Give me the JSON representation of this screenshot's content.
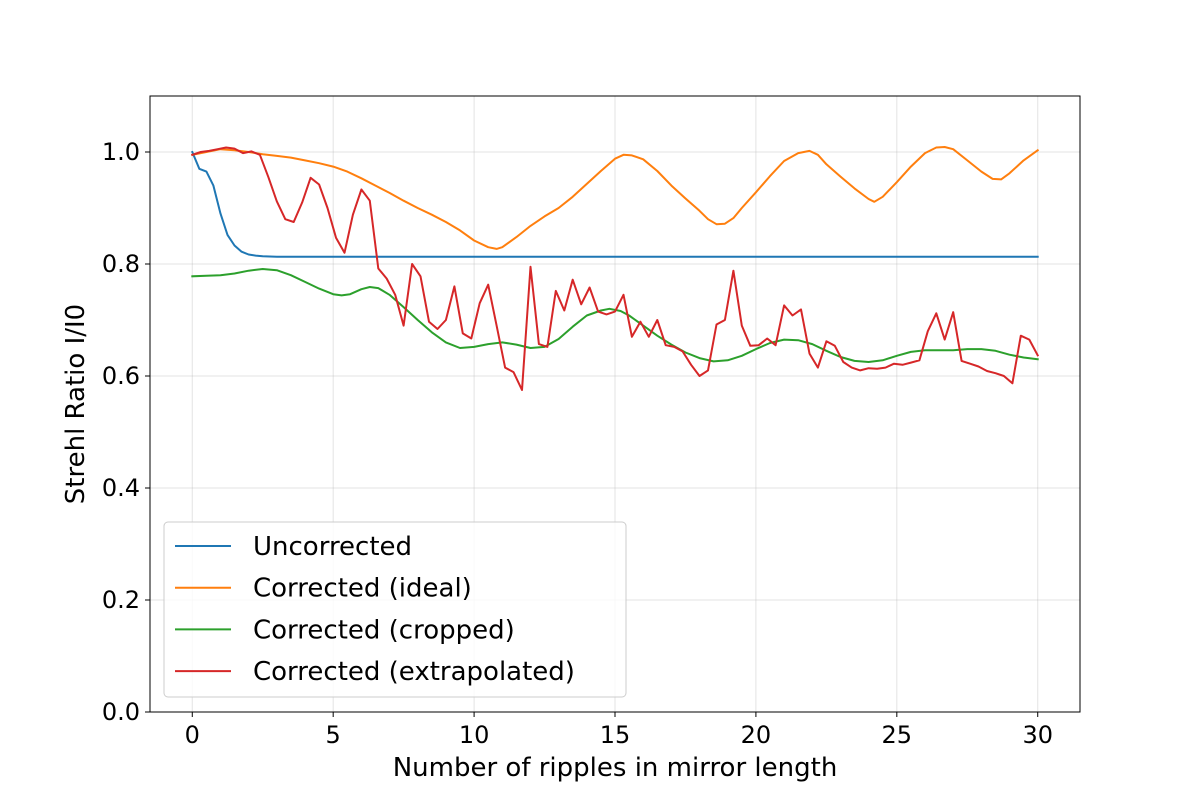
{
  "chart_data": {
    "type": "line",
    "title": "",
    "xlabel": "Number of ripples in mirror length",
    "ylabel": "Strehl Ratio I/I0",
    "xlim": [
      -1.5,
      31.5
    ],
    "ylim": [
      0.0,
      1.1
    ],
    "xticks": [
      0,
      5,
      10,
      15,
      20,
      25,
      30
    ],
    "yticks": [
      0.0,
      0.2,
      0.4,
      0.6,
      0.8,
      1.0
    ],
    "xtick_labels": [
      "0",
      "5",
      "10",
      "15",
      "20",
      "25",
      "30"
    ],
    "ytick_labels": [
      "0.0",
      "0.2",
      "0.4",
      "0.6",
      "0.8",
      "1.0"
    ],
    "grid": true,
    "legend_position": "lower-left",
    "series": [
      {
        "name": "Uncorrected",
        "color": "#1f77b4",
        "x": [
          0,
          0.25,
          0.5,
          0.75,
          1.0,
          1.25,
          1.5,
          1.75,
          2.0,
          2.25,
          2.5,
          3.0,
          3.5,
          4,
          5,
          6,
          8,
          10,
          12,
          14,
          16,
          18,
          20,
          22,
          24,
          26,
          28,
          30
        ],
        "y": [
          1.0,
          0.97,
          0.965,
          0.94,
          0.89,
          0.852,
          0.833,
          0.822,
          0.817,
          0.815,
          0.814,
          0.813,
          0.813,
          0.813,
          0.813,
          0.813,
          0.813,
          0.813,
          0.813,
          0.813,
          0.813,
          0.813,
          0.813,
          0.813,
          0.813,
          0.813,
          0.813,
          0.813
        ]
      },
      {
        "name": "Corrected (ideal)",
        "color": "#ff7f0e",
        "x": [
          0,
          0.5,
          1.0,
          1.5,
          2.0,
          2.5,
          3.0,
          3.5,
          4.0,
          4.5,
          5.0,
          5.5,
          6.0,
          6.5,
          7.0,
          7.5,
          8.0,
          8.5,
          9.0,
          9.5,
          10.0,
          10.5,
          10.8,
          11.0,
          11.5,
          12.0,
          12.5,
          13.0,
          13.5,
          14.0,
          14.5,
          15.0,
          15.3,
          15.6,
          16.0,
          16.5,
          17.0,
          17.5,
          18.0,
          18.3,
          18.6,
          18.9,
          19.2,
          19.5,
          20.0,
          20.5,
          21.0,
          21.5,
          21.9,
          22.2,
          22.5,
          23.0,
          23.5,
          24.0,
          24.2,
          24.5,
          25.0,
          25.5,
          26.0,
          26.4,
          26.7,
          27.0,
          27.5,
          28.0,
          28.4,
          28.7,
          29.0,
          29.5,
          30.0
        ],
        "y": [
          0.995,
          1.0,
          1.005,
          1.003,
          1.0,
          0.996,
          0.993,
          0.99,
          0.985,
          0.98,
          0.974,
          0.965,
          0.953,
          0.94,
          0.927,
          0.913,
          0.9,
          0.888,
          0.875,
          0.86,
          0.842,
          0.83,
          0.827,
          0.83,
          0.848,
          0.868,
          0.885,
          0.9,
          0.92,
          0.943,
          0.966,
          0.988,
          0.995,
          0.994,
          0.987,
          0.966,
          0.94,
          0.917,
          0.895,
          0.88,
          0.871,
          0.872,
          0.882,
          0.9,
          0.928,
          0.957,
          0.984,
          0.998,
          1.002,
          0.995,
          0.978,
          0.956,
          0.935,
          0.916,
          0.911,
          0.92,
          0.946,
          0.974,
          0.998,
          1.008,
          1.009,
          1.005,
          0.985,
          0.965,
          0.952,
          0.951,
          0.962,
          0.985,
          1.003
        ]
      },
      {
        "name": "Corrected (cropped)",
        "color": "#2ca02c",
        "x": [
          0,
          0.5,
          1.0,
          1.5,
          2.0,
          2.5,
          3.0,
          3.5,
          4.0,
          4.5,
          5.0,
          5.3,
          5.6,
          6.0,
          6.3,
          6.6,
          7.0,
          7.5,
          8.0,
          8.5,
          9.0,
          9.5,
          10.0,
          10.5,
          11.0,
          11.5,
          12.0,
          12.5,
          13.0,
          13.5,
          14.0,
          14.5,
          14.8,
          15.2,
          15.5,
          16.0,
          16.5,
          17.0,
          17.5,
          18.0,
          18.5,
          19.0,
          19.5,
          20.0,
          20.5,
          21.0,
          21.5,
          22.0,
          22.5,
          23.0,
          23.5,
          24.0,
          24.5,
          25.0,
          25.5,
          26.0,
          26.5,
          27.0,
          27.5,
          28.0,
          28.5,
          29.0,
          29.5,
          30.0
        ],
        "y": [
          0.778,
          0.779,
          0.78,
          0.783,
          0.788,
          0.791,
          0.789,
          0.78,
          0.768,
          0.756,
          0.746,
          0.744,
          0.746,
          0.755,
          0.759,
          0.757,
          0.745,
          0.723,
          0.7,
          0.678,
          0.66,
          0.65,
          0.652,
          0.657,
          0.66,
          0.656,
          0.65,
          0.652,
          0.666,
          0.688,
          0.708,
          0.717,
          0.72,
          0.716,
          0.708,
          0.69,
          0.672,
          0.656,
          0.642,
          0.632,
          0.626,
          0.628,
          0.636,
          0.648,
          0.659,
          0.665,
          0.664,
          0.657,
          0.645,
          0.634,
          0.627,
          0.625,
          0.628,
          0.636,
          0.643,
          0.646,
          0.646,
          0.646,
          0.648,
          0.648,
          0.645,
          0.638,
          0.633,
          0.63
        ]
      },
      {
        "name": "Corrected (extrapolated)",
        "color": "#d62728",
        "x": [
          0,
          0.3,
          0.6,
          0.9,
          1.2,
          1.5,
          1.8,
          2.1,
          2.4,
          2.7,
          3.0,
          3.3,
          3.6,
          3.9,
          4.2,
          4.5,
          4.8,
          5.1,
          5.4,
          5.7,
          6.0,
          6.3,
          6.6,
          6.9,
          7.2,
          7.5,
          7.8,
          8.1,
          8.4,
          8.7,
          9.0,
          9.3,
          9.6,
          9.9,
          10.2,
          10.5,
          10.8,
          11.1,
          11.4,
          11.7,
          12.0,
          12.3,
          12.6,
          12.9,
          13.2,
          13.5,
          13.8,
          14.1,
          14.4,
          14.7,
          15.0,
          15.3,
          15.6,
          15.9,
          16.2,
          16.5,
          16.8,
          17.1,
          17.4,
          17.7,
          18.0,
          18.3,
          18.6,
          18.9,
          19.2,
          19.5,
          19.8,
          20.1,
          20.4,
          20.7,
          21.0,
          21.3,
          21.6,
          21.9,
          22.2,
          22.5,
          22.8,
          23.1,
          23.4,
          23.7,
          24.0,
          24.3,
          24.6,
          24.9,
          25.2,
          25.5,
          25.8,
          26.1,
          26.4,
          26.7,
          27.0,
          27.3,
          27.6,
          27.9,
          28.2,
          28.5,
          28.8,
          29.1,
          29.4,
          29.7,
          30.0
        ],
        "y": [
          0.995,
          1.0,
          1.002,
          1.005,
          1.008,
          1.006,
          0.998,
          1.001,
          0.995,
          0.955,
          0.912,
          0.88,
          0.875,
          0.91,
          0.954,
          0.942,
          0.9,
          0.847,
          0.82,
          0.888,
          0.933,
          0.913,
          0.792,
          0.774,
          0.745,
          0.69,
          0.8,
          0.778,
          0.697,
          0.684,
          0.7,
          0.76,
          0.676,
          0.667,
          0.73,
          0.763,
          0.69,
          0.615,
          0.607,
          0.575,
          0.795,
          0.657,
          0.652,
          0.752,
          0.717,
          0.772,
          0.728,
          0.758,
          0.715,
          0.71,
          0.715,
          0.745,
          0.67,
          0.697,
          0.67,
          0.7,
          0.655,
          0.652,
          0.644,
          0.62,
          0.6,
          0.61,
          0.692,
          0.7,
          0.788,
          0.69,
          0.654,
          0.655,
          0.667,
          0.655,
          0.726,
          0.708,
          0.719,
          0.64,
          0.615,
          0.662,
          0.654,
          0.625,
          0.615,
          0.61,
          0.614,
          0.613,
          0.615,
          0.622,
          0.62,
          0.624,
          0.628,
          0.68,
          0.712,
          0.665,
          0.714,
          0.627,
          0.622,
          0.617,
          0.609,
          0.605,
          0.6,
          0.587,
          0.672,
          0.665,
          0.637
        ]
      }
    ]
  }
}
